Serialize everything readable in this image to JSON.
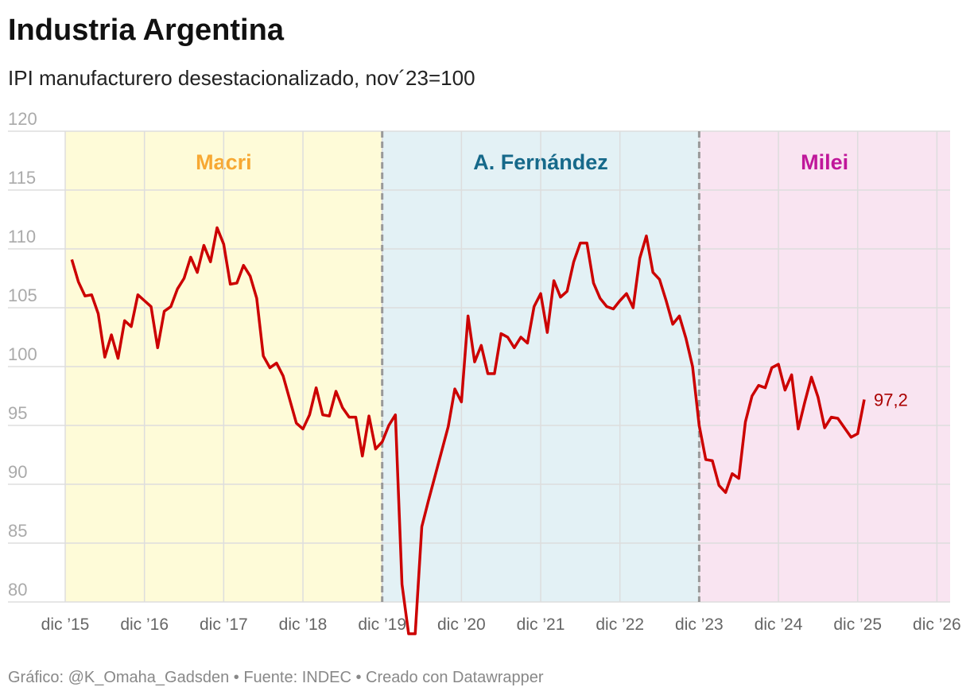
{
  "chart_data": {
    "type": "line",
    "title": "Industria Argentina",
    "subtitle": "IPI manufacturero desestacionalizado, nov´23=100",
    "footer": "Gráfico: @K_Omaha_Gadsden • Fuente: INDEC • Creado con Datawrapper",
    "x": [
      "2016-01",
      "2016-02",
      "2016-03",
      "2016-04",
      "2016-05",
      "2016-06",
      "2016-07",
      "2016-08",
      "2016-09",
      "2016-10",
      "2016-11",
      "2016-12",
      "2017-01",
      "2017-02",
      "2017-03",
      "2017-04",
      "2017-05",
      "2017-06",
      "2017-07",
      "2017-08",
      "2017-09",
      "2017-10",
      "2017-11",
      "2017-12",
      "2018-01",
      "2018-02",
      "2018-03",
      "2018-04",
      "2018-05",
      "2018-06",
      "2018-07",
      "2018-08",
      "2018-09",
      "2018-10",
      "2018-11",
      "2018-12",
      "2019-01",
      "2019-02",
      "2019-03",
      "2019-04",
      "2019-05",
      "2019-06",
      "2019-07",
      "2019-08",
      "2019-09",
      "2019-10",
      "2019-11",
      "2019-12",
      "2020-01",
      "2020-02",
      "2020-03",
      "2020-04",
      "2020-05",
      "2020-06",
      "2020-07",
      "2020-08",
      "2020-09",
      "2020-10",
      "2020-11",
      "2020-12",
      "2021-01",
      "2021-02",
      "2021-03",
      "2021-04",
      "2021-05",
      "2021-06",
      "2021-07",
      "2021-08",
      "2021-09",
      "2021-10",
      "2021-11",
      "2021-12",
      "2022-01",
      "2022-02",
      "2022-03",
      "2022-04",
      "2022-05",
      "2022-06",
      "2022-07",
      "2022-08",
      "2022-09",
      "2022-10",
      "2022-11",
      "2022-12",
      "2023-01",
      "2023-02",
      "2023-03",
      "2023-04",
      "2023-05",
      "2023-06",
      "2023-07",
      "2023-08",
      "2023-09",
      "2023-10",
      "2023-11",
      "2023-12",
      "2024-01",
      "2024-02",
      "2024-03",
      "2024-04",
      "2024-05",
      "2024-06",
      "2024-07",
      "2024-08",
      "2024-09",
      "2024-10",
      "2024-11",
      "2024-12",
      "2025-01",
      "2025-02",
      "2025-03",
      "2025-04",
      "2025-05",
      "2025-06",
      "2025-07",
      "2025-08",
      "2025-09",
      "2025-10",
      "2025-11",
      "2025-12",
      "2026-01"
    ],
    "series": [
      {
        "name": "IPI manufacturero",
        "color": "#cc0000",
        "values": [
          109.1,
          107.2,
          106.0,
          106.1,
          104.5,
          100.8,
          102.7,
          100.7,
          103.9,
          103.4,
          106.1,
          105.6,
          105.1,
          101.6,
          104.7,
          105.1,
          106.6,
          107.5,
          109.3,
          108.0,
          110.3,
          108.9,
          111.8,
          110.4,
          107.0,
          107.1,
          108.6,
          107.7,
          105.8,
          100.9,
          99.9,
          100.3,
          99.2,
          97.2,
          95.2,
          94.7,
          95.9,
          98.2,
          95.9,
          95.8,
          97.9,
          96.5,
          95.7,
          95.7,
          92.4,
          95.8,
          93.0,
          93.6,
          95.0,
          95.9,
          81.5,
          77.3,
          77.3,
          86.4,
          88.6,
          90.7,
          92.8,
          94.9,
          98.1,
          97.0,
          104.3,
          100.4,
          101.8,
          99.4,
          99.4,
          102.8,
          102.5,
          101.6,
          102.5,
          102.0,
          105.1,
          106.2,
          102.9,
          107.3,
          105.9,
          106.4,
          108.9,
          110.5,
          110.5,
          107.1,
          105.8,
          105.1,
          104.9,
          105.6,
          106.2,
          105.0,
          109.2,
          111.1,
          108.0,
          107.4,
          105.6,
          103.6,
          104.3,
          102.4,
          100.0,
          95.0,
          92.1,
          92.0,
          89.9,
          89.3,
          90.9,
          90.5,
          95.3,
          97.5,
          98.4,
          98.2,
          99.9,
          100.2,
          98.0,
          99.3,
          94.7,
          97.0,
          99.1,
          97.4,
          94.8,
          95.7,
          95.6,
          94.8,
          94.0,
          94.3,
          97.2
        ],
        "value_labels": [
          null,
          null,
          null,
          null,
          null,
          null,
          null,
          null,
          null,
          null,
          null,
          null,
          null,
          null,
          null,
          null,
          null,
          null,
          null,
          null,
          null,
          null,
          null,
          null,
          null,
          null,
          null,
          null,
          null,
          null,
          null,
          null,
          null,
          null,
          null,
          null,
          null,
          null,
          null,
          null,
          null,
          null,
          null,
          null,
          null,
          null,
          null,
          null,
          null,
          null,
          null,
          null,
          null,
          null,
          null,
          null,
          null,
          null,
          null,
          null,
          null,
          null,
          null,
          null,
          null,
          null,
          null,
          null,
          null,
          null,
          null,
          null,
          null,
          null,
          null,
          null,
          null,
          null,
          null,
          null,
          null,
          null,
          null,
          null,
          null,
          null,
          null,
          null,
          null,
          null,
          null,
          null,
          null,
          null,
          null,
          null,
          null,
          null,
          null,
          null,
          null,
          null,
          null,
          null,
          null,
          null,
          null,
          null,
          null,
          null,
          null,
          null,
          null,
          null,
          null,
          null,
          null,
          null,
          null,
          null,
          "97,2"
        ]
      }
    ],
    "periods": [
      {
        "name": "Macri",
        "start": "2015-12",
        "end": "2019-12",
        "color": "#fefbd8",
        "label_color": "#f7a833"
      },
      {
        "name": "A. Fernández",
        "start": "2019-12",
        "end": "2023-12",
        "color": "#e3f1f5",
        "label_color": "#16698a"
      },
      {
        "name": "Milei",
        "start": "2023-12",
        "end": "2027-02",
        "color": "#f9e4f1",
        "label_color": "#c0179a"
      }
    ],
    "xlim": [
      "2015-12",
      "2027-02"
    ],
    "xticks": [
      {
        "value": "2015-12",
        "label": "dic ’15"
      },
      {
        "value": "2016-12",
        "label": "dic ’16"
      },
      {
        "value": "2017-12",
        "label": "dic ’17"
      },
      {
        "value": "2018-12",
        "label": "dic ’18"
      },
      {
        "value": "2019-12",
        "label": "dic ’19"
      },
      {
        "value": "2020-12",
        "label": "dic ’20"
      },
      {
        "value": "2021-12",
        "label": "dic ’21"
      },
      {
        "value": "2022-12",
        "label": "dic ’22"
      },
      {
        "value": "2023-12",
        "label": "dic ’23"
      },
      {
        "value": "2024-12",
        "label": "dic ’24"
      },
      {
        "value": "2025-12",
        "label": "dic ’25"
      },
      {
        "value": "2026-12",
        "label": "dic ’26"
      }
    ],
    "ylim": [
      80,
      120
    ],
    "yticks": [
      80,
      85,
      90,
      95,
      100,
      105,
      110,
      115,
      120
    ],
    "grid": true
  }
}
